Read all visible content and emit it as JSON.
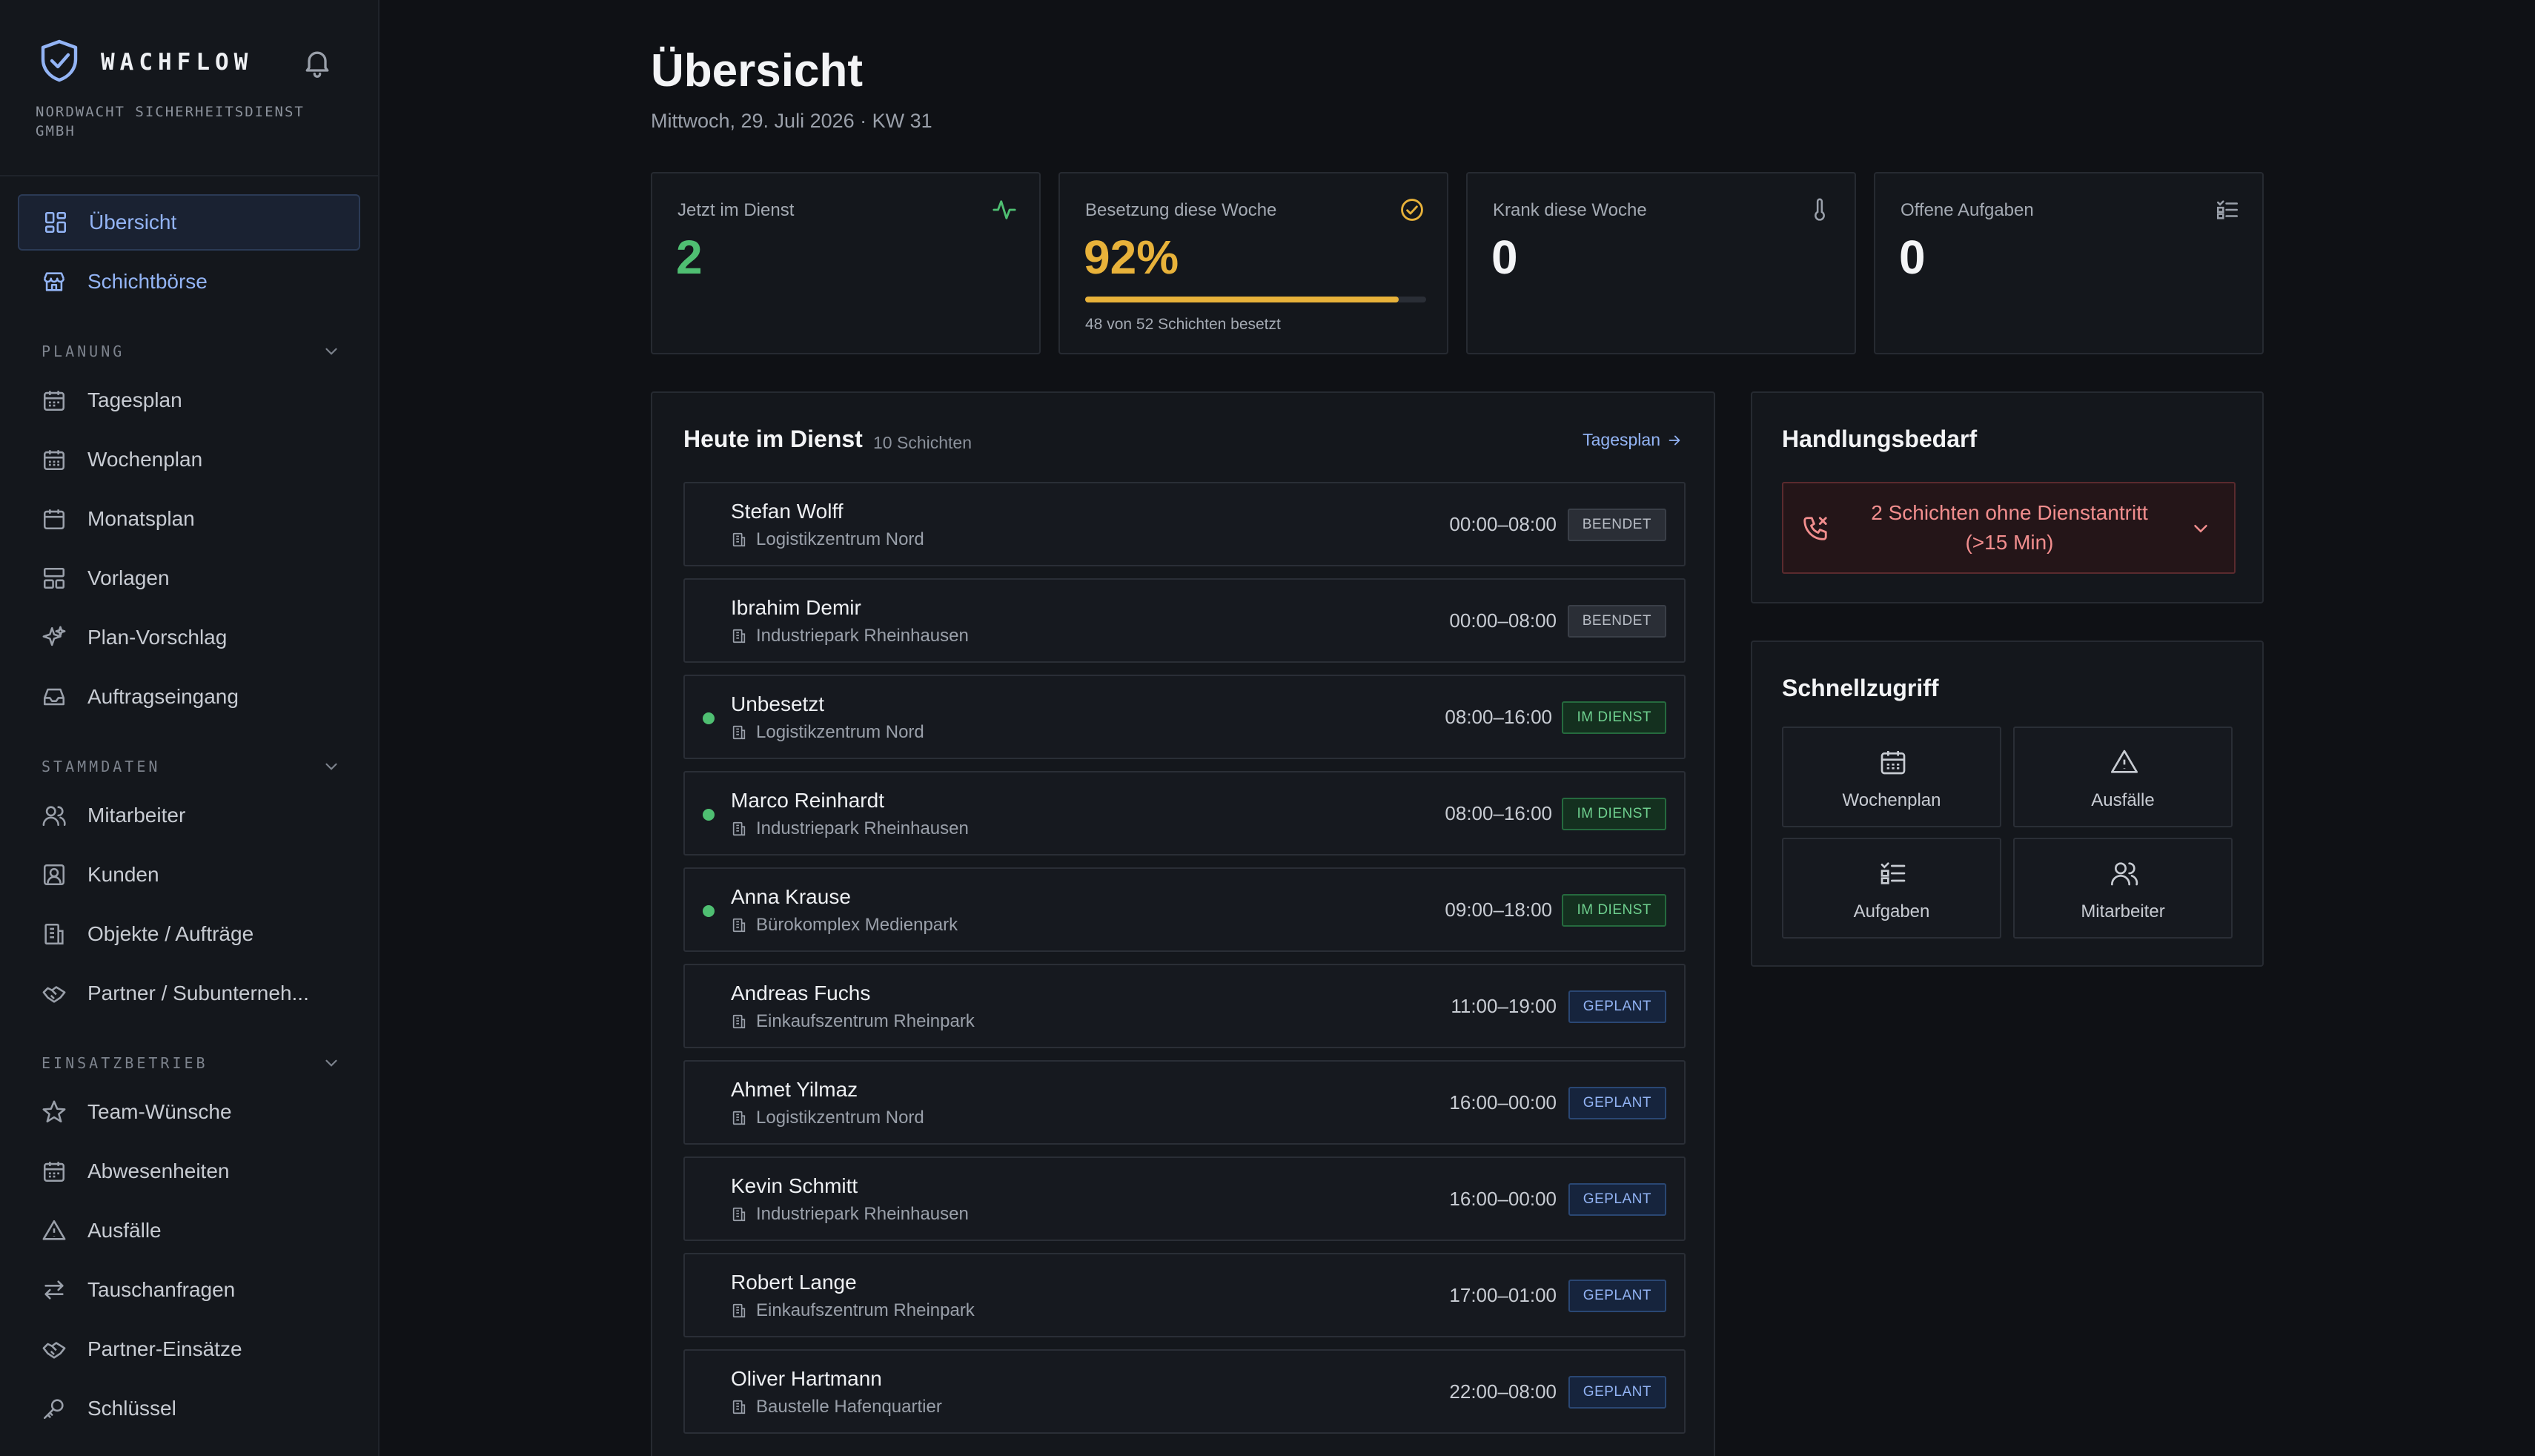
{
  "app": {
    "name": "WACHFLOW",
    "company": "NORDWACHT SICHERHEITSDIENST GMBH"
  },
  "sidebar": {
    "top_items": [
      {
        "label": "Übersicht",
        "icon": "dashboard-icon"
      },
      {
        "label": "Schichtbörse",
        "icon": "store-icon"
      }
    ],
    "sections": [
      {
        "label": "PLANUNG",
        "items": [
          {
            "label": "Tagesplan",
            "icon": "calendar-day-icon"
          },
          {
            "label": "Wochenplan",
            "icon": "calendar-week-icon"
          },
          {
            "label": "Monatsplan",
            "icon": "calendar-month-icon"
          },
          {
            "label": "Vorlagen",
            "icon": "template-icon"
          },
          {
            "label": "Plan-Vorschlag",
            "icon": "sparkles-icon"
          },
          {
            "label": "Auftragseingang",
            "icon": "inbox-icon"
          }
        ]
      },
      {
        "label": "STAMMDATEN",
        "items": [
          {
            "label": "Mitarbeiter",
            "icon": "users-icon"
          },
          {
            "label": "Kunden",
            "icon": "contact-icon"
          },
          {
            "label": "Objekte / Aufträge",
            "icon": "building-icon"
          },
          {
            "label": "Partner / Subunterneh...",
            "icon": "handshake-icon"
          }
        ]
      },
      {
        "label": "EINSATZBETRIEB",
        "items": [
          {
            "label": "Team-Wünsche",
            "icon": "star-icon"
          },
          {
            "label": "Abwesenheiten",
            "icon": "calendar-off-icon"
          },
          {
            "label": "Ausfälle",
            "icon": "warning-icon"
          },
          {
            "label": "Tauschanfragen",
            "icon": "swap-icon"
          },
          {
            "label": "Partner-Einsätze",
            "icon": "handshake-icon"
          },
          {
            "label": "Schlüssel",
            "icon": "key-icon"
          }
        ]
      }
    ]
  },
  "header": {
    "title": "Übersicht",
    "subtitle": "Mittwoch, 29. Juli 2026 · KW 31"
  },
  "stats": [
    {
      "label": "Jetzt im Dienst",
      "value": "2",
      "icon": "activity-icon",
      "color": "#4fbf72"
    },
    {
      "label": "Besetzung diese Woche",
      "value": "92%",
      "icon": "check-circle-icon",
      "color": "#e8b23a",
      "progress": 0.92,
      "caption": "48 von 52 Schichten besetzt"
    },
    {
      "label": "Krank diese Woche",
      "value": "0",
      "icon": "thermometer-icon",
      "color": "#f3f4f6"
    },
    {
      "label": "Offene Aufgaben",
      "value": "0",
      "icon": "tasks-icon",
      "color": "#f3f4f6"
    }
  ],
  "duty": {
    "title": "Heute im Dienst",
    "count": "10 Schichten",
    "link": "Tagesplan",
    "shifts": [
      {
        "name": "Stefan Wolff",
        "location": "Logistikzentrum Nord",
        "time": "00:00–08:00",
        "status": "BEENDET",
        "kind": "ended",
        "dot": false
      },
      {
        "name": "Ibrahim Demir",
        "location": "Industriepark Rheinhausen",
        "time": "00:00–08:00",
        "status": "BEENDET",
        "kind": "ended",
        "dot": false
      },
      {
        "name": "Unbesetzt",
        "location": "Logistikzentrum Nord",
        "time": "08:00–16:00",
        "status": "IM DIENST",
        "kind": "active",
        "dot": true
      },
      {
        "name": "Marco Reinhardt",
        "location": "Industriepark Rheinhausen",
        "time": "08:00–16:00",
        "status": "IM DIENST",
        "kind": "active",
        "dot": true
      },
      {
        "name": "Anna Krause",
        "location": "Bürokomplex Medienpark",
        "time": "09:00–18:00",
        "status": "IM DIENST",
        "kind": "active",
        "dot": true
      },
      {
        "name": "Andreas Fuchs",
        "location": "Einkaufszentrum Rheinpark",
        "time": "11:00–19:00",
        "status": "GEPLANT",
        "kind": "planned",
        "dot": false
      },
      {
        "name": "Ahmet Yilmaz",
        "location": "Logistikzentrum Nord",
        "time": "16:00–00:00",
        "status": "GEPLANT",
        "kind": "planned",
        "dot": false
      },
      {
        "name": "Kevin Schmitt",
        "location": "Industriepark Rheinhausen",
        "time": "16:00–00:00",
        "status": "GEPLANT",
        "kind": "planned",
        "dot": false
      },
      {
        "name": "Robert Lange",
        "location": "Einkaufszentrum Rheinpark",
        "time": "17:00–01:00",
        "status": "GEPLANT",
        "kind": "planned",
        "dot": false
      },
      {
        "name": "Oliver Hartmann",
        "location": "Baustelle Hafenquartier",
        "time": "22:00–08:00",
        "status": "GEPLANT",
        "kind": "planned",
        "dot": false
      }
    ]
  },
  "action_needed": {
    "title": "Handlungsbedarf",
    "alert_line1": "2 Schichten ohne Dienstantritt",
    "alert_line2": "(>15 Min)",
    "alert_color": "#f28e8e"
  },
  "quick_access": {
    "title": "Schnellzugriff",
    "tiles": [
      {
        "label": "Wochenplan",
        "icon": "calendar-icon"
      },
      {
        "label": "Ausfälle",
        "icon": "warning-icon"
      },
      {
        "label": "Aufgaben",
        "icon": "tasks-icon"
      },
      {
        "label": "Mitarbeiter",
        "icon": "users-icon"
      }
    ]
  }
}
